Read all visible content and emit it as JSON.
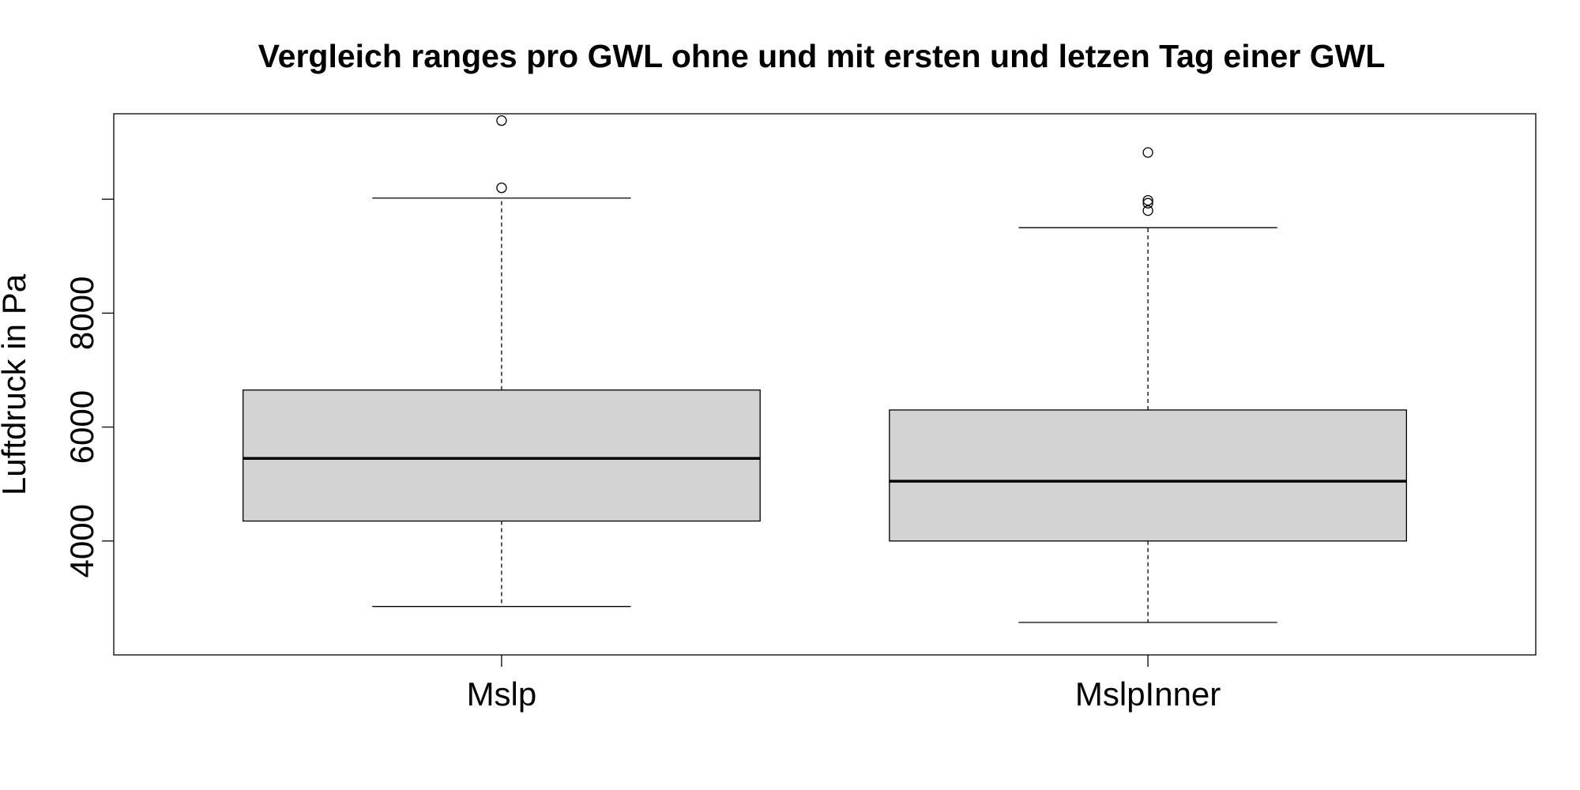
{
  "chart_data": {
    "type": "boxplot",
    "title": "Vergleich ranges pro GWL ohne und mit ersten und letzen Tag einer GWL",
    "xlabel": "",
    "ylabel": "Luftdruck in Pa",
    "ylim": [
      2000,
      11500
    ],
    "yticks": [
      4000,
      6000,
      8000
    ],
    "grid": false,
    "categories": [
      "Mslp",
      "MslpInner"
    ],
    "boxes": [
      {
        "category": "Mslp",
        "whisker_low": 2850,
        "q1": 4350,
        "median": 5450,
        "q3": 6650,
        "whisker_high": 10020,
        "outliers": [
          10200,
          11380
        ]
      },
      {
        "category": "MslpInner",
        "whisker_low": 2570,
        "q1": 4000,
        "median": 5050,
        "q3": 6300,
        "whisker_high": 9500,
        "outliers": [
          9800,
          9930,
          9980,
          10820
        ]
      }
    ],
    "colors": {
      "box_fill": "#d3d3d3",
      "line": "#000000",
      "background": "#ffffff"
    }
  }
}
